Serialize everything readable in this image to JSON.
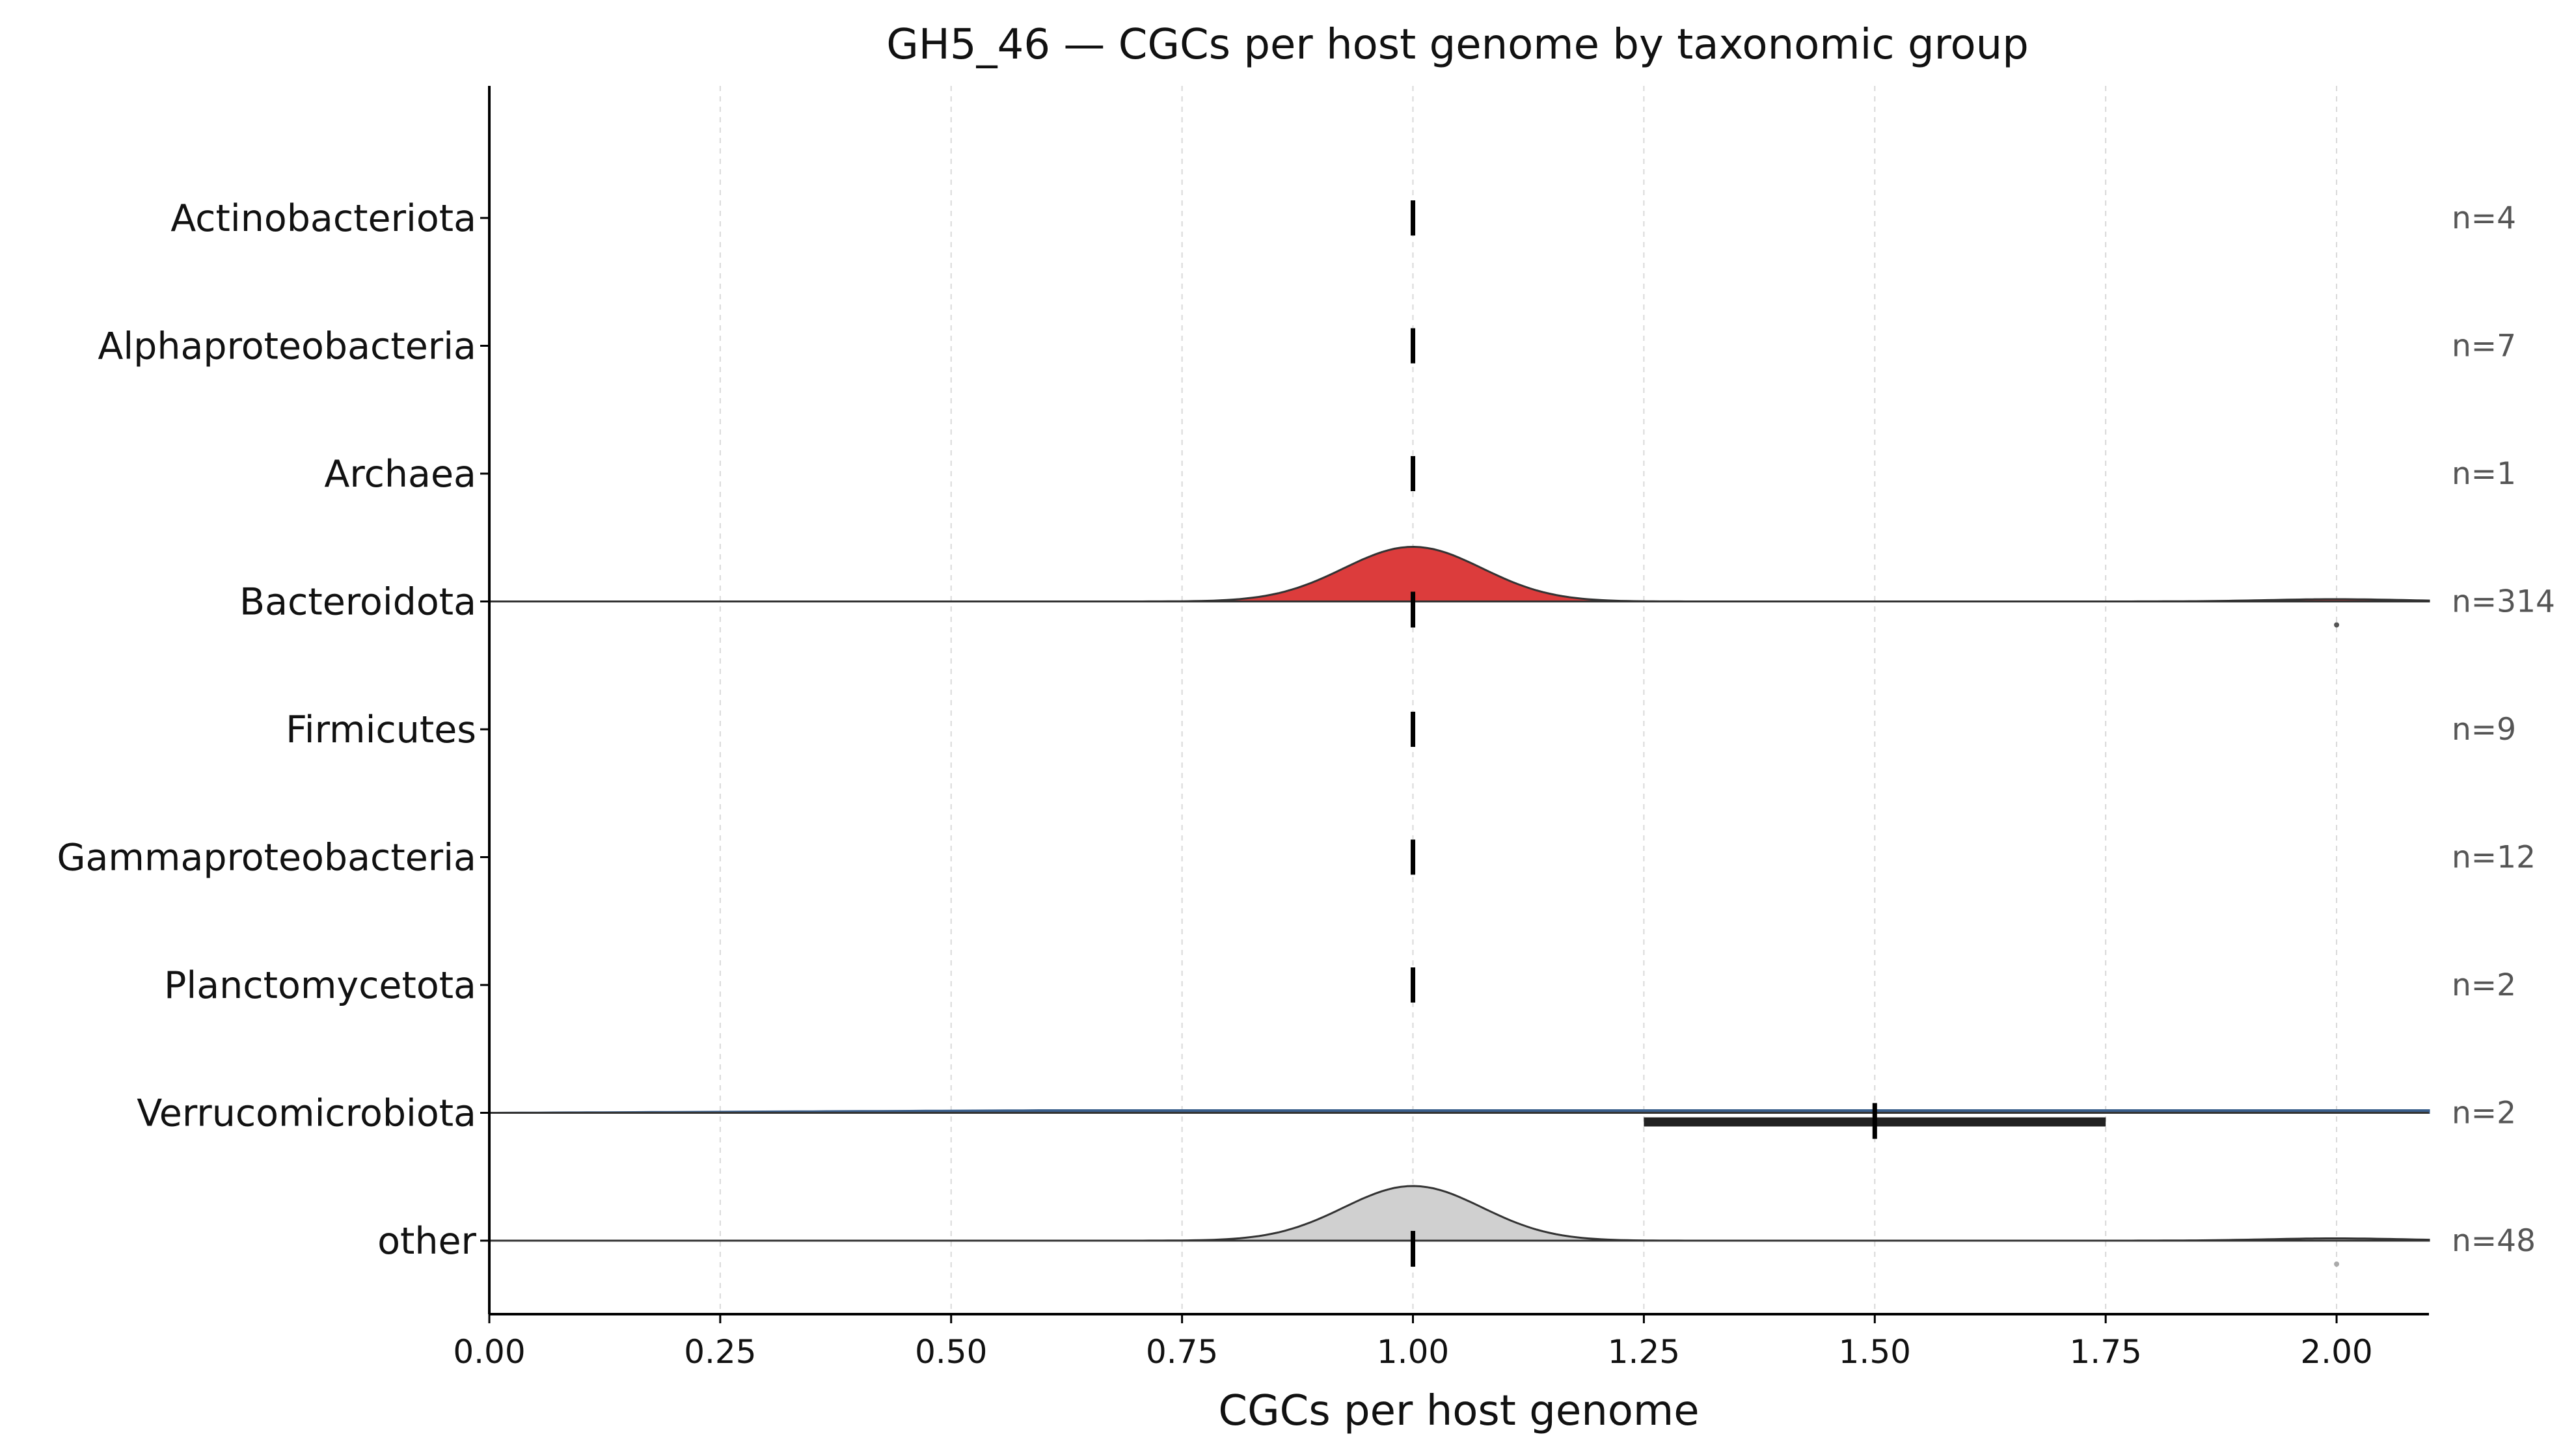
{
  "chart_data": {
    "type": "ridgeline",
    "title": "GH5_46 — CGCs per host genome by taxonomic group",
    "xlabel": "CGCs per host genome",
    "ylabel": "",
    "xlim": [
      0,
      2.1
    ],
    "xticks": [
      "0.00",
      "0.25",
      "0.50",
      "0.75",
      "1.00",
      "1.25",
      "1.50",
      "1.75",
      "2.00"
    ],
    "grid": "vertical dashed",
    "groups": [
      {
        "name": "Actinobacteriota",
        "n_label": "n=4",
        "median": 1.0,
        "density": false,
        "color": null,
        "outliers": []
      },
      {
        "name": "Alphaproteobacteria",
        "n_label": "n=7",
        "median": 1.0,
        "density": false,
        "color": null,
        "outliers": []
      },
      {
        "name": "Archaea",
        "n_label": "n=1",
        "median": 1.0,
        "density": false,
        "color": null,
        "outliers": []
      },
      {
        "name": "Bacteroidota",
        "n_label": "n=314",
        "median": 1.0,
        "density": true,
        "peak": 1.0,
        "color": "#dc3c3c",
        "secondary_peak": 2.0,
        "outliers": [
          2.0
        ]
      },
      {
        "name": "Firmicutes",
        "n_label": "n=9",
        "median": 1.0,
        "density": false,
        "color": null,
        "outliers": []
      },
      {
        "name": "Gammaproteobacteria",
        "n_label": "n=12",
        "median": 1.0,
        "density": false,
        "color": null,
        "outliers": []
      },
      {
        "name": "Planctomycetota",
        "n_label": "n=2",
        "median": 1.0,
        "density": false,
        "color": null,
        "outliers": []
      },
      {
        "name": "Verrucomicrobiota",
        "n_label": "n=2",
        "median": 1.5,
        "iqr": [
          1.25,
          1.75
        ],
        "density": true,
        "flat": true,
        "color": "#3a5f8c",
        "outliers": []
      },
      {
        "name": "other",
        "n_label": "n=48",
        "median": 1.0,
        "density": true,
        "peak": 1.0,
        "color": "#d0d0d0",
        "secondary_peak": 2.0,
        "outliers": [
          2.0
        ]
      }
    ]
  }
}
